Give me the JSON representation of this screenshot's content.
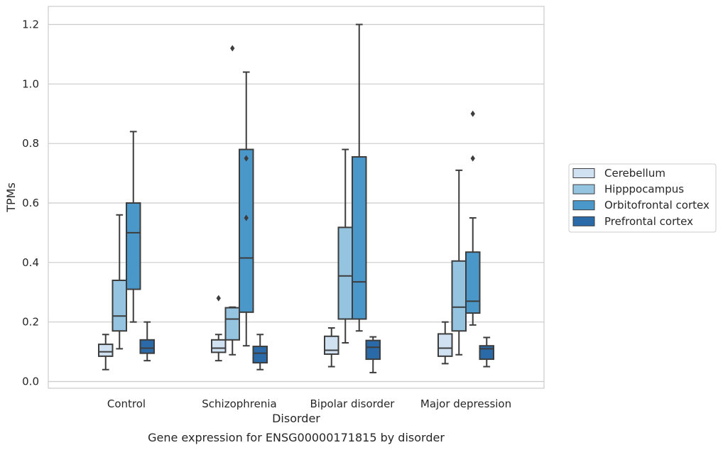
{
  "caption": "Gene expression for ENSG00000171815 by disorder",
  "chart_data": {
    "type": "box",
    "xlabel": "Disorder",
    "ylabel": "TPMs",
    "ylim": [
      -0.025,
      1.26
    ],
    "yticks": [
      "0.0",
      "0.2",
      "0.4",
      "0.6",
      "0.8",
      "1.0",
      "1.2"
    ],
    "ytick_values": [
      0.0,
      0.2,
      0.4,
      0.6,
      0.8,
      1.0,
      1.2
    ],
    "grid": "horizontal",
    "legend_position": "right",
    "categories": [
      "Control",
      "Schizophrenia",
      "Bipolar disorder",
      "Major depression"
    ],
    "series": [
      {
        "name": "Cerebellum",
        "color": "#d0e1f2",
        "boxes": [
          {
            "q1": 0.085,
            "median": 0.1,
            "q3": 0.125,
            "whisker_low": 0.04,
            "whisker_high": 0.158,
            "outliers": []
          },
          {
            "q1": 0.098,
            "median": 0.112,
            "q3": 0.14,
            "whisker_low": 0.07,
            "whisker_high": 0.158,
            "outliers": [
              0.28
            ]
          },
          {
            "q1": 0.092,
            "median": 0.105,
            "q3": 0.152,
            "whisker_low": 0.05,
            "whisker_high": 0.18,
            "outliers": []
          },
          {
            "q1": 0.085,
            "median": 0.112,
            "q3": 0.16,
            "whisker_low": 0.06,
            "whisker_high": 0.2,
            "outliers": []
          }
        ]
      },
      {
        "name": "Hipppocampus",
        "color": "#94c4df",
        "boxes": [
          {
            "q1": 0.17,
            "median": 0.22,
            "q3": 0.34,
            "whisker_low": 0.11,
            "whisker_high": 0.56,
            "outliers": []
          },
          {
            "q1": 0.14,
            "median": 0.21,
            "q3": 0.248,
            "whisker_low": 0.09,
            "whisker_high": 0.25,
            "outliers": [
              1.12
            ]
          },
          {
            "q1": 0.21,
            "median": 0.355,
            "q3": 0.518,
            "whisker_low": 0.13,
            "whisker_high": 0.78,
            "outliers": []
          },
          {
            "q1": 0.17,
            "median": 0.25,
            "q3": 0.405,
            "whisker_low": 0.09,
            "whisker_high": 0.71,
            "outliers": []
          }
        ]
      },
      {
        "name": "Orbitofrontal cortex",
        "color": "#4a98c9",
        "boxes": [
          {
            "q1": 0.31,
            "median": 0.5,
            "q3": 0.6,
            "whisker_low": 0.2,
            "whisker_high": 0.84,
            "outliers": []
          },
          {
            "q1": 0.233,
            "median": 0.415,
            "q3": 0.78,
            "whisker_low": 0.12,
            "whisker_high": 1.04,
            "outliers": [
              0.75,
              0.55
            ]
          },
          {
            "q1": 0.21,
            "median": 0.335,
            "q3": 0.755,
            "whisker_low": 0.17,
            "whisker_high": 1.2,
            "outliers": []
          },
          {
            "q1": 0.23,
            "median": 0.27,
            "q3": 0.435,
            "whisker_low": 0.19,
            "whisker_high": 0.55,
            "outliers": [
              0.75,
              0.9
            ]
          }
        ]
      },
      {
        "name": "Prefrontal cortex",
        "color": "#2b6aa8",
        "boxes": [
          {
            "q1": 0.095,
            "median": 0.112,
            "q3": 0.14,
            "whisker_low": 0.07,
            "whisker_high": 0.2,
            "outliers": []
          },
          {
            "q1": 0.063,
            "median": 0.095,
            "q3": 0.118,
            "whisker_low": 0.04,
            "whisker_high": 0.158,
            "outliers": []
          },
          {
            "q1": 0.075,
            "median": 0.115,
            "q3": 0.138,
            "whisker_low": 0.03,
            "whisker_high": 0.15,
            "outliers": []
          },
          {
            "q1": 0.075,
            "median": 0.11,
            "q3": 0.12,
            "whisker_low": 0.05,
            "whisker_high": 0.148,
            "outliers": []
          }
        ]
      }
    ]
  }
}
